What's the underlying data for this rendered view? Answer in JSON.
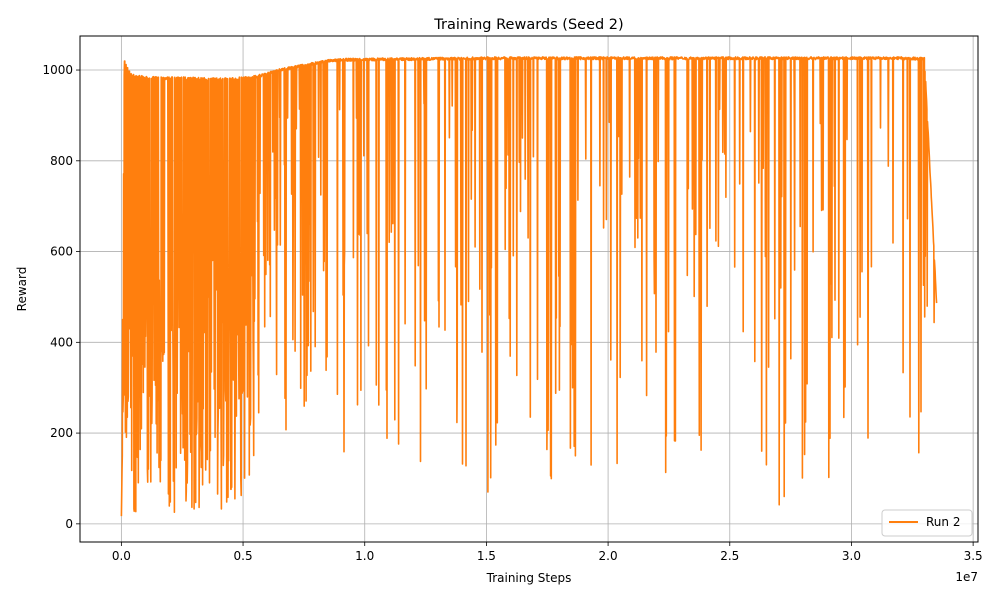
{
  "chart_data": {
    "type": "line",
    "title": "Training Rewards (Seed 2)",
    "xlabel": "Training Steps",
    "ylabel": "Reward",
    "x_offset_label": "1e7",
    "xlim": [
      -1700000,
      35200000
    ],
    "ylim": [
      -40,
      1075
    ],
    "x_ticks": [
      0,
      5000000,
      10000000,
      15000000,
      20000000,
      25000000,
      30000000,
      35000000
    ],
    "x_tick_labels": [
      "0.0",
      "0.5",
      "1.0",
      "1.5",
      "2.0",
      "2.5",
      "3.0",
      "3.5"
    ],
    "y_ticks": [
      0,
      200,
      400,
      600,
      800,
      1000
    ],
    "y_tick_labels": [
      "0",
      "200",
      "400",
      "600",
      "800",
      "1000"
    ],
    "grid": true,
    "legend_position": "lower-right",
    "series": [
      {
        "name": "Run 2",
        "color": "#ff7f0e",
        "x": [
          0,
          120000,
          250000,
          400000,
          600000,
          800000,
          1000000,
          1200000,
          1500000,
          1800000,
          2200000,
          2600000,
          3000000,
          3500000,
          4000000,
          4500000,
          5000000,
          5500000,
          6000000,
          6500000,
          7000000,
          7500000,
          8000000,
          8500000,
          9000000,
          9500000,
          10000000,
          11000000,
          12000000,
          13000000,
          14000000,
          15000000,
          16000000,
          17000000,
          18000000,
          19000000,
          20000000,
          21000000,
          22000000,
          23000000,
          24000000,
          25000000,
          26000000,
          27000000,
          28000000,
          29000000,
          30000000,
          31000000,
          32000000,
          33000000,
          33500000
        ],
        "y": [
          20,
          1020,
          1005,
          990,
          985,
          985,
          983,
          983,
          982,
          982,
          982,
          982,
          981,
          980,
          980,
          980,
          982,
          985,
          992,
          1000,
          1005,
          1010,
          1015,
          1020,
          1022,
          1023,
          1023,
          1024,
          1024,
          1025,
          1025,
          1026,
          1026,
          1026,
          1026,
          1026,
          1026,
          1026,
          1026,
          1026,
          1026,
          1026,
          1026,
          1026,
          1026,
          1026,
          1026,
          1026,
          1026,
          1025,
          485
        ],
        "envelope_min": [
          15,
          20,
          35,
          30,
          25,
          30,
          40,
          50,
          15,
          20,
          25,
          20,
          20,
          20,
          20,
          60,
          30,
          160,
          320,
          210,
          150,
          240,
          280,
          140,
          100,
          200,
          150,
          180,
          130,
          25,
          80,
          20,
          280,
          110,
          15,
          100,
          50,
          100,
          100,
          90,
          80,
          50,
          200,
          30,
          100,
          80,
          70,
          80,
          120,
          130,
          485
        ]
      }
    ]
  }
}
